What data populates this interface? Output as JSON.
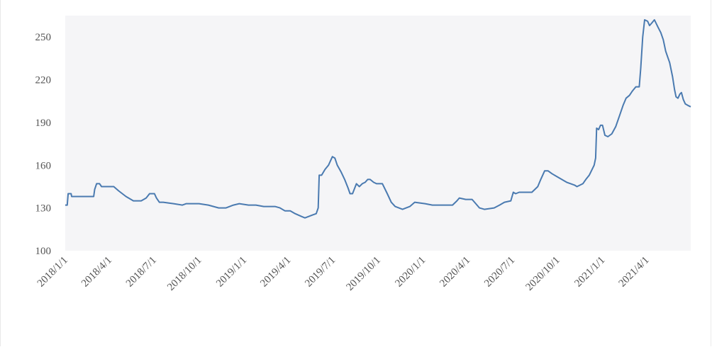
{
  "chart_data": {
    "type": "line",
    "title": "",
    "xlabel": "",
    "ylabel": "",
    "ylim": [
      100,
      265
    ],
    "xlim": [
      "2018-01-01",
      "2021-06-30"
    ],
    "yticks": [
      "100",
      "130",
      "160",
      "190",
      "220",
      "250"
    ],
    "xticks": [
      {
        "date": "2018-01-01",
        "label": "2018/1/1"
      },
      {
        "date": "2018-04-01",
        "label": "2018/4/1"
      },
      {
        "date": "2018-07-01",
        "label": "2018/7/1"
      },
      {
        "date": "2018-10-01",
        "label": "2018/10/1"
      },
      {
        "date": "2019-01-01",
        "label": "2019/1/1"
      },
      {
        "date": "2019-04-01",
        "label": "2019/4/1"
      },
      {
        "date": "2019-07-01",
        "label": "2019/7/1"
      },
      {
        "date": "2019-10-01",
        "label": "2019/10/1"
      },
      {
        "date": "2020-01-01",
        "label": "2020/1/1"
      },
      {
        "date": "2020-04-01",
        "label": "2020/4/1"
      },
      {
        "date": "2020-07-01",
        "label": "2020/7/1"
      },
      {
        "date": "2020-10-01",
        "label": "2020/10/1"
      },
      {
        "date": "2021-01-01",
        "label": "2021/1/1"
      },
      {
        "date": "2021-04-01",
        "label": "2021/4/1"
      }
    ],
    "grid": false,
    "series": [
      {
        "color": "#4a7ab0",
        "points": [
          [
            "2018-01-01",
            132
          ],
          [
            "2018-01-05",
            132
          ],
          [
            "2018-01-07",
            140
          ],
          [
            "2018-01-13",
            140
          ],
          [
            "2018-01-14",
            138
          ],
          [
            "2018-02-28",
            138
          ],
          [
            "2018-03-02",
            143
          ],
          [
            "2018-03-06",
            147
          ],
          [
            "2018-03-12",
            147
          ],
          [
            "2018-03-16",
            145
          ],
          [
            "2018-04-10",
            145
          ],
          [
            "2018-04-20",
            142
          ],
          [
            "2018-05-05",
            138
          ],
          [
            "2018-05-20",
            135
          ],
          [
            "2018-06-05",
            135
          ],
          [
            "2018-06-15",
            137
          ],
          [
            "2018-06-22",
            140
          ],
          [
            "2018-07-02",
            140
          ],
          [
            "2018-07-06",
            137
          ],
          [
            "2018-07-12",
            134
          ],
          [
            "2018-07-20",
            134
          ],
          [
            "2018-08-10",
            133
          ],
          [
            "2018-08-28",
            132
          ],
          [
            "2018-09-05",
            133
          ],
          [
            "2018-10-01",
            133
          ],
          [
            "2018-10-20",
            132
          ],
          [
            "2018-11-10",
            130
          ],
          [
            "2018-11-25",
            130
          ],
          [
            "2018-12-10",
            132
          ],
          [
            "2018-12-22",
            133
          ],
          [
            "2019-01-10",
            132
          ],
          [
            "2019-01-25",
            132
          ],
          [
            "2019-02-10",
            131
          ],
          [
            "2019-03-05",
            131
          ],
          [
            "2019-03-15",
            130
          ],
          [
            "2019-03-25",
            128
          ],
          [
            "2019-04-05",
            128
          ],
          [
            "2019-04-15",
            126
          ],
          [
            "2019-04-28",
            124
          ],
          [
            "2019-05-05",
            123
          ],
          [
            "2019-05-20",
            125
          ],
          [
            "2019-05-28",
            126
          ],
          [
            "2019-06-01",
            130
          ],
          [
            "2019-06-03",
            153
          ],
          [
            "2019-06-08",
            153
          ],
          [
            "2019-06-15",
            157
          ],
          [
            "2019-06-22",
            160
          ],
          [
            "2019-06-30",
            166
          ],
          [
            "2019-07-05",
            165
          ],
          [
            "2019-07-10",
            160
          ],
          [
            "2019-07-18",
            155
          ],
          [
            "2019-07-25",
            150
          ],
          [
            "2019-08-01",
            144
          ],
          [
            "2019-08-05",
            140
          ],
          [
            "2019-08-10",
            140
          ],
          [
            "2019-08-18",
            147
          ],
          [
            "2019-08-24",
            145
          ],
          [
            "2019-08-30",
            147
          ],
          [
            "2019-09-05",
            148
          ],
          [
            "2019-09-10",
            150
          ],
          [
            "2019-09-15",
            150
          ],
          [
            "2019-09-22",
            148
          ],
          [
            "2019-09-28",
            147
          ],
          [
            "2019-10-10",
            147
          ],
          [
            "2019-10-20",
            140
          ],
          [
            "2019-10-28",
            134
          ],
          [
            "2019-11-05",
            131
          ],
          [
            "2019-11-20",
            129
          ],
          [
            "2019-12-05",
            131
          ],
          [
            "2019-12-15",
            134
          ],
          [
            "2020-01-05",
            133
          ],
          [
            "2020-01-20",
            132
          ],
          [
            "2020-02-15",
            132
          ],
          [
            "2020-03-01",
            132
          ],
          [
            "2020-03-10",
            135
          ],
          [
            "2020-03-15",
            137
          ],
          [
            "2020-03-28",
            136
          ],
          [
            "2020-04-10",
            136
          ],
          [
            "2020-04-15",
            134
          ],
          [
            "2020-04-25",
            130
          ],
          [
            "2020-05-05",
            129
          ],
          [
            "2020-05-25",
            130
          ],
          [
            "2020-06-05",
            132
          ],
          [
            "2020-06-15",
            134
          ],
          [
            "2020-06-28",
            135
          ],
          [
            "2020-07-03",
            141
          ],
          [
            "2020-07-08",
            140
          ],
          [
            "2020-07-15",
            141
          ],
          [
            "2020-07-25",
            141
          ],
          [
            "2020-08-10",
            141
          ],
          [
            "2020-08-22",
            145
          ],
          [
            "2020-08-28",
            150
          ],
          [
            "2020-09-05",
            156
          ],
          [
            "2020-09-12",
            156
          ],
          [
            "2020-09-20",
            154
          ],
          [
            "2020-09-30",
            152
          ],
          [
            "2020-10-10",
            150
          ],
          [
            "2020-10-20",
            148
          ],
          [
            "2020-10-28",
            147
          ],
          [
            "2020-11-05",
            146
          ],
          [
            "2020-11-10",
            145
          ],
          [
            "2020-11-22",
            147
          ],
          [
            "2020-11-28",
            150
          ],
          [
            "2020-12-05",
            153
          ],
          [
            "2020-12-15",
            160
          ],
          [
            "2020-12-18",
            165
          ],
          [
            "2020-12-20",
            186
          ],
          [
            "2020-12-24",
            185
          ],
          [
            "2020-12-28",
            188
          ],
          [
            "2021-01-01",
            188
          ],
          [
            "2021-01-06",
            181
          ],
          [
            "2021-01-12",
            180
          ],
          [
            "2021-01-20",
            182
          ],
          [
            "2021-01-28",
            187
          ],
          [
            "2021-02-05",
            195
          ],
          [
            "2021-02-12",
            202
          ],
          [
            "2021-02-18",
            207
          ],
          [
            "2021-02-25",
            209
          ],
          [
            "2021-03-03",
            212
          ],
          [
            "2021-03-10",
            215
          ],
          [
            "2021-03-17",
            215
          ],
          [
            "2021-03-20",
            228
          ],
          [
            "2021-03-24",
            250
          ],
          [
            "2021-03-28",
            262
          ],
          [
            "2021-04-03",
            261
          ],
          [
            "2021-04-07",
            258
          ],
          [
            "2021-04-12",
            260
          ],
          [
            "2021-04-17",
            262
          ],
          [
            "2021-04-24",
            257
          ],
          [
            "2021-04-30",
            253
          ],
          [
            "2021-05-05",
            248
          ],
          [
            "2021-05-10",
            240
          ],
          [
            "2021-05-14",
            236
          ],
          [
            "2021-05-18",
            232
          ],
          [
            "2021-05-24",
            222
          ],
          [
            "2021-05-28",
            213
          ],
          [
            "2021-05-31",
            208
          ],
          [
            "2021-06-04",
            207
          ],
          [
            "2021-06-08",
            210
          ],
          [
            "2021-06-11",
            211
          ],
          [
            "2021-06-15",
            206
          ],
          [
            "2021-06-19",
            203
          ],
          [
            "2021-06-24",
            202
          ],
          [
            "2021-06-30",
            201
          ]
        ]
      }
    ]
  }
}
